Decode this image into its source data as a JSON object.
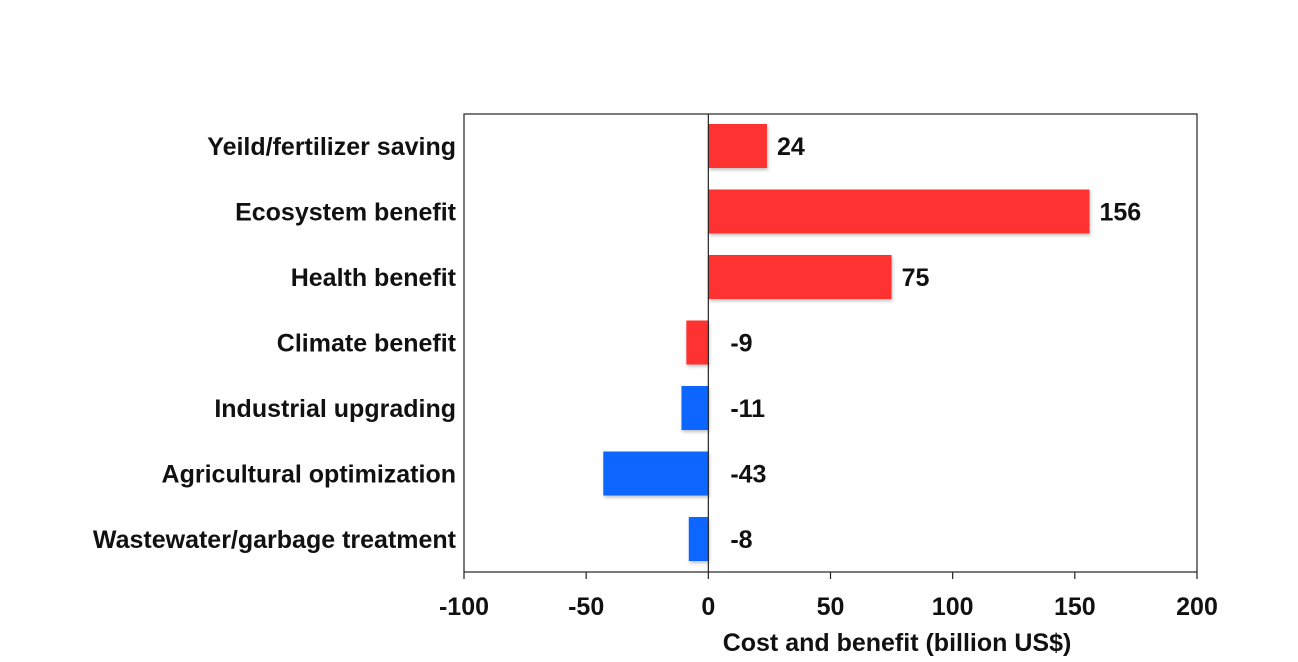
{
  "chart_data": {
    "type": "bar",
    "orientation": "horizontal",
    "title": "",
    "xlabel": "Cost and benefit (billion US$)",
    "ylabel": "",
    "xlim": [
      -100,
      200
    ],
    "xticks": [
      -100,
      -50,
      0,
      50,
      100,
      150,
      200
    ],
    "xtick_labels": [
      "-100",
      "-50",
      "0",
      "50",
      "100",
      "150",
      "200"
    ],
    "grid": false,
    "legend": null,
    "categories": [
      "Yeild/fertilizer saving",
      "Ecosystem benefit",
      "Health benefit",
      "Climate benefit",
      "Industrial upgrading",
      "Agricultural optimization",
      "Wastewater/garbage treatment"
    ],
    "values": [
      24,
      156,
      75,
      -9,
      -11,
      -43,
      -8
    ],
    "value_labels": [
      "24",
      "156",
      "75",
      "-9",
      "-11",
      "-43",
      "-8"
    ],
    "bar_colors": [
      "#ff3333",
      "#ff3333",
      "#ff3333",
      "#ff3333",
      "#1166ff",
      "#1166ff",
      "#1166ff"
    ]
  }
}
